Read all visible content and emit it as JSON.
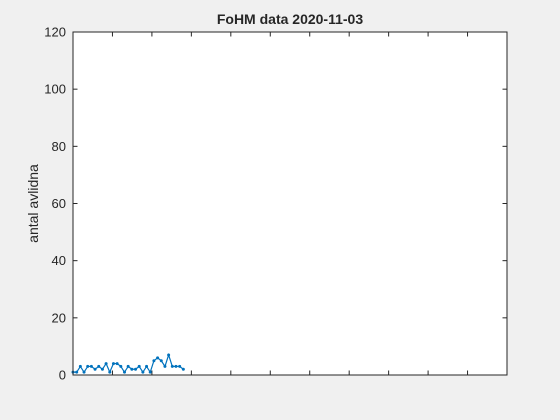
{
  "chart_data": {
    "type": "line",
    "title": "FoHM data 2020-11-03",
    "xlabel": "",
    "ylabel": "antal avlidna",
    "xlim": [
      1,
      119
    ],
    "ylim": [
      0,
      120
    ],
    "yticks": [
      0,
      20,
      40,
      60,
      80,
      100,
      120
    ],
    "xtick_count": 10,
    "x_tick_labels_visible": false,
    "grid": false,
    "series": [
      {
        "color": "#0072bd",
        "marker": "point",
        "x": [
          1,
          2,
          3,
          4,
          5,
          6,
          7,
          8,
          9,
          10,
          11,
          12,
          13,
          14,
          15,
          16,
          17,
          18,
          19,
          20,
          21,
          22,
          23,
          24,
          25,
          26,
          27,
          28,
          29,
          30,
          31
        ],
        "values": [
          1,
          1,
          3,
          1,
          3,
          3,
          2,
          3,
          2,
          4,
          1,
          4,
          4,
          3,
          1,
          3,
          2,
          2,
          3,
          1,
          3,
          1,
          5,
          6,
          5,
          3,
          7,
          3,
          3,
          3,
          2
        ]
      }
    ]
  }
}
